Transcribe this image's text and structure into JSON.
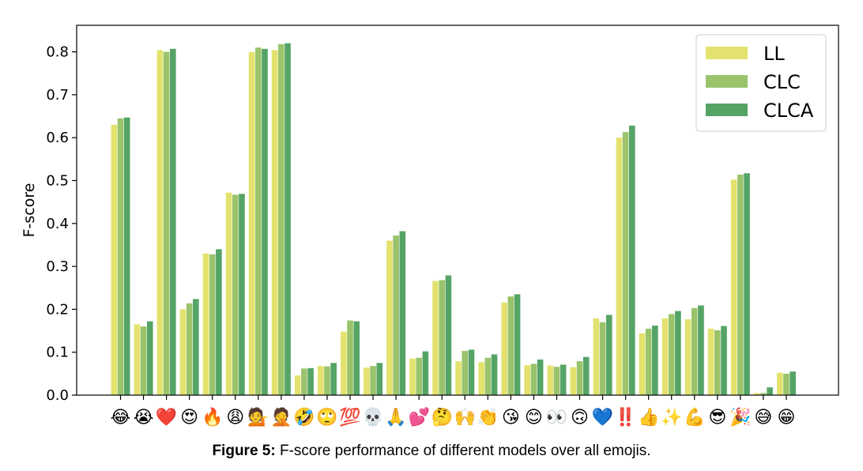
{
  "chart_data": {
    "type": "bar",
    "ylabel": "F-score",
    "xlabel": "",
    "ylim": [
      0,
      0.83
    ],
    "yticks": [
      "0.0",
      "0.1",
      "0.2",
      "0.3",
      "0.4",
      "0.5",
      "0.6",
      "0.7",
      "0.8"
    ],
    "legend_position": "top-right",
    "grid": false,
    "categories": [
      "😂",
      "😭",
      "❤️",
      "😍",
      "🔥",
      "😩",
      "💁",
      "🤦",
      "🤣",
      "🙄",
      "💯",
      "💀",
      "🙏",
      "💕",
      "🤔",
      "🙌",
      "👏",
      "😘",
      "😊",
      "👀",
      "🙃",
      "💙",
      "‼️",
      "👍",
      "✨",
      "💪",
      "😎",
      "🎉",
      "😅",
      "😁"
    ],
    "series": [
      {
        "name": "LL",
        "color": "#e3e26e",
        "values": [
          0.63,
          0.165,
          0.804,
          0.2,
          0.33,
          0.472,
          0.8,
          0.804,
          0.046,
          0.068,
          0.148,
          0.064,
          0.36,
          0.085,
          0.266,
          0.079,
          0.077,
          0.216,
          0.07,
          0.069,
          0.065,
          0.179,
          0.6,
          0.144,
          0.179,
          0.177,
          0.155,
          0.502,
          0.005,
          0.052
        ]
      },
      {
        "name": "CLC",
        "color": "#9ac36c",
        "values": [
          0.645,
          0.16,
          0.8,
          0.214,
          0.328,
          0.467,
          0.81,
          0.818,
          0.062,
          0.067,
          0.174,
          0.068,
          0.372,
          0.087,
          0.268,
          0.103,
          0.087,
          0.23,
          0.073,
          0.066,
          0.079,
          0.17,
          0.613,
          0.155,
          0.189,
          0.203,
          0.151,
          0.514,
          0.005,
          0.05
        ]
      },
      {
        "name": "CLCA",
        "color": "#55a466",
        "values": [
          0.647,
          0.172,
          0.807,
          0.224,
          0.34,
          0.469,
          0.807,
          0.82,
          0.063,
          0.075,
          0.172,
          0.075,
          0.382,
          0.102,
          0.279,
          0.106,
          0.095,
          0.235,
          0.083,
          0.071,
          0.089,
          0.187,
          0.628,
          0.162,
          0.196,
          0.209,
          0.161,
          0.517,
          0.018,
          0.055
        ]
      }
    ]
  },
  "caption": {
    "label": "Figure 5:",
    "text": " F-score performance of different models over all emojis."
  }
}
